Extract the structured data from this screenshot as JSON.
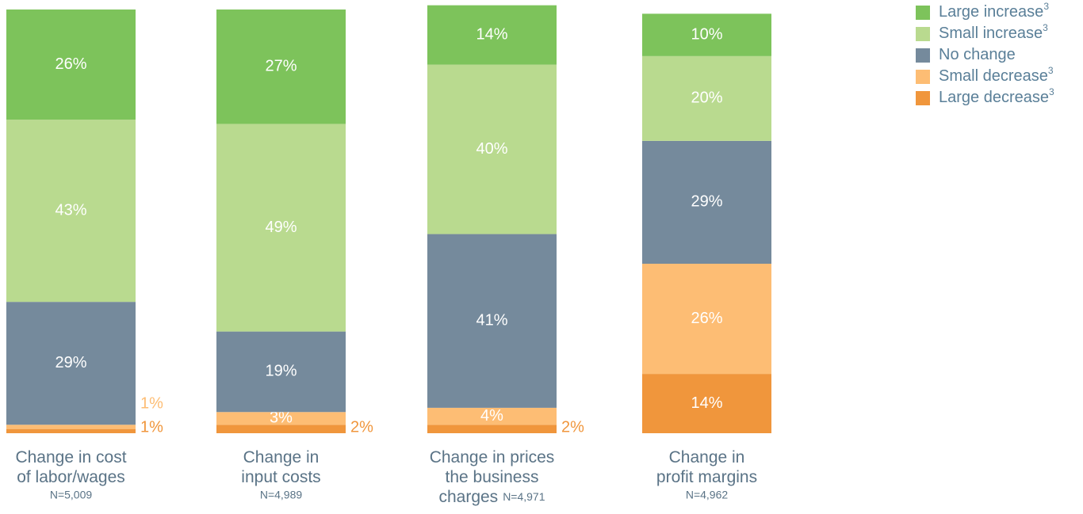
{
  "chart_data": {
    "type": "stacked_bar",
    "categories": [
      [
        "Change in cost",
        "of labor/wages"
      ],
      [
        "Change in",
        "input costs"
      ],
      [
        "Change in prices",
        "the business",
        "charges"
      ],
      [
        "Change in",
        "profit margins"
      ]
    ],
    "sample_sizes": [
      "N=5,009",
      "N=4,989",
      "N=4,971",
      "N=4,962"
    ],
    "ylim": [
      0,
      100
    ],
    "series": [
      {
        "name": "Large decrease",
        "footnote": "3",
        "color": "#f0963c",
        "values": [
          1,
          2,
          2,
          14
        ],
        "value_labels": [
          "1%",
          "2%",
          "2%",
          "14%"
        ]
      },
      {
        "name": "Small decrease",
        "footnote": "3",
        "color": "#fdbd74",
        "values": [
          1,
          3,
          4,
          26
        ],
        "value_labels": [
          "1%",
          "3%",
          "4%",
          "26%"
        ]
      },
      {
        "name": "No change",
        "color": "#758a9c",
        "values": [
          29,
          19,
          41,
          29
        ],
        "value_labels": [
          "29%",
          "19%",
          "41%",
          "29%"
        ]
      },
      {
        "name": "Small increase",
        "footnote": "3",
        "color": "#b9da8f",
        "values": [
          43,
          49,
          40,
          20
        ],
        "value_labels": [
          "43%",
          "49%",
          "40%",
          "20%"
        ]
      },
      {
        "name": "Large increase",
        "footnote": "3",
        "color": "#7dc35b",
        "values": [
          26,
          27,
          14,
          10
        ],
        "value_labels": [
          "26%",
          "27%",
          "14%",
          "10%"
        ]
      }
    ],
    "legend": "top-right"
  }
}
